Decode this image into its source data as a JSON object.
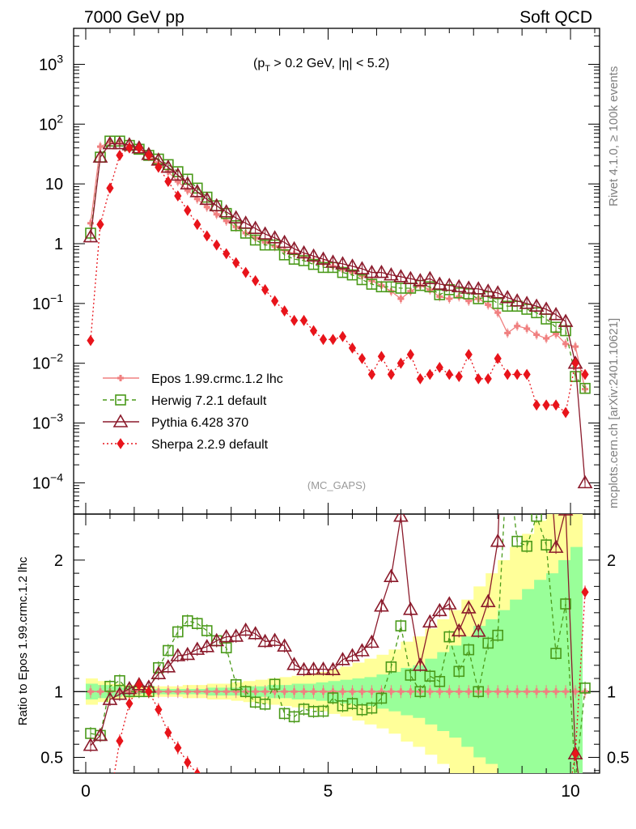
{
  "header": {
    "left": "7000 GeV pp",
    "right": "Soft QCD"
  },
  "annotations": {
    "cut_text": "(pT > 0.2 GeV, |η| < 5.2)",
    "cut_pre": "(p",
    "cut_sub": "T",
    "cut_post": " > 0.2 GeV, |η| < 5.2)",
    "analysis": "(MC_GAPS)",
    "rivet": "Rivet 4.1.0, ≥ 100k events",
    "source": "mcplots.cern.ch [arXiv:2401.10621]",
    "ratio_ylabel": "Ratio to Epos 1.99.crmc.1.2 lhc"
  },
  "chart_data": {
    "type": "line",
    "title": "7000 GeV pp — Soft QCD",
    "xlabel": "",
    "xlim": [
      -0.25,
      10.6
    ],
    "x_ticks": [
      0,
      5,
      10
    ],
    "top_panel": {
      "yscale": "log",
      "ylim": [
        3e-05,
        4000
      ],
      "y_ticks": [
        {
          "value": 1000,
          "mant": "10",
          "exp": "3"
        },
        {
          "value": 100,
          "mant": "10",
          "exp": "2"
        },
        {
          "value": 10,
          "mant": "10",
          "exp": ""
        },
        {
          "value": 1,
          "mant": "1",
          "exp": ""
        },
        {
          "value": 0.1,
          "mant": "10",
          "exp": "−1"
        },
        {
          "value": 0.01,
          "mant": "10",
          "exp": "−2"
        },
        {
          "value": 0.001,
          "mant": "10",
          "exp": "−3"
        },
        {
          "value": 0.0001,
          "mant": "10",
          "exp": "−4"
        }
      ]
    },
    "ratio_panel": {
      "ylim": [
        0.38,
        2.35
      ],
      "y_ticks": [
        0.5,
        1,
        2
      ],
      "y_tick_labels": [
        "0.5",
        "1",
        "2"
      ],
      "reference": 1,
      "band_inner_half": [
        0.06,
        0.05,
        0.04,
        0.03,
        0.02,
        0.02,
        0.02,
        0.02,
        0.02,
        0.02,
        0.03,
        0.03,
        0.03,
        0.04,
        0.04,
        0.05,
        0.05,
        0.06,
        0.06,
        0.07,
        0.08,
        0.09,
        0.1,
        0.11,
        0.13,
        0.15,
        0.18,
        0.2,
        0.25,
        0.3,
        0.35,
        0.42,
        0.5,
        0.55,
        0.62,
        0.7,
        0.78,
        0.85,
        0.9,
        1.0,
        1.1
      ],
      "band_outer_half": [
        0.1,
        0.08,
        0.06,
        0.05,
        0.04,
        0.04,
        0.04,
        0.04,
        0.05,
        0.05,
        0.06,
        0.06,
        0.07,
        0.08,
        0.09,
        0.1,
        0.11,
        0.12,
        0.13,
        0.15,
        0.17,
        0.19,
        0.22,
        0.25,
        0.28,
        0.32,
        0.38,
        0.42,
        0.48,
        0.55,
        0.62,
        0.7,
        0.8,
        0.9,
        1.0,
        1.1,
        1.2,
        1.3,
        1.4,
        1.5,
        1.6
      ]
    },
    "series": [
      {
        "name": "Epos 1.99.crmc.1.2 lhc",
        "color": "#f08080",
        "dash": "",
        "marker": "cross",
        "x": [
          0.1,
          0.3,
          0.5,
          0.7,
          0.9,
          1.1,
          1.3,
          1.5,
          1.7,
          1.9,
          2.1,
          2.3,
          2.5,
          2.7,
          2.9,
          3.1,
          3.3,
          3.5,
          3.7,
          3.9,
          4.1,
          4.3,
          4.5,
          4.7,
          4.9,
          5.1,
          5.3,
          5.5,
          5.7,
          5.9,
          6.1,
          6.3,
          6.5,
          6.7,
          6.9,
          7.1,
          7.3,
          7.5,
          7.7,
          7.9,
          8.1,
          8.3,
          8.5,
          8.7,
          8.9,
          9.1,
          9.3,
          9.5,
          9.7,
          9.9,
          10.1,
          10.3
        ],
        "y": [
          2.2,
          42,
          50,
          48,
          44,
          38,
          30,
          22,
          16,
          11,
          7.8,
          5.6,
          4.1,
          3.1,
          2.4,
          1.9,
          1.5,
          1.25,
          1.05,
          0.9,
          0.78,
          0.68,
          0.6,
          0.53,
          0.47,
          0.42,
          0.37,
          0.33,
          0.29,
          0.24,
          0.2,
          0.16,
          0.12,
          0.16,
          0.2,
          0.17,
          0.13,
          0.12,
          0.13,
          0.11,
          0.12,
          0.095,
          0.07,
          0.032,
          0.042,
          0.038,
          0.03,
          0.026,
          0.031,
          0.021,
          0.019,
          0.0037
        ]
      },
      {
        "name": "Herwig 7.2.1 default",
        "color": "#4a9a1a",
        "dash": "5,4",
        "marker": "square",
        "x": [
          0.1,
          0.3,
          0.5,
          0.7,
          0.9,
          1.1,
          1.3,
          1.5,
          1.7,
          1.9,
          2.1,
          2.3,
          2.5,
          2.7,
          2.9,
          3.1,
          3.3,
          3.5,
          3.7,
          3.9,
          4.1,
          4.3,
          4.5,
          4.7,
          4.9,
          5.1,
          5.3,
          5.5,
          5.7,
          5.9,
          6.1,
          6.3,
          6.5,
          6.7,
          6.9,
          7.1,
          7.3,
          7.5,
          7.7,
          7.9,
          8.1,
          8.3,
          8.5,
          8.7,
          8.9,
          9.1,
          9.3,
          9.5,
          9.7,
          9.9,
          10.1,
          10.3
        ],
        "y": [
          1.5,
          28,
          52,
          52,
          44,
          38,
          30,
          26,
          21,
          16,
          12,
          8.5,
          6,
          4.3,
          3.2,
          2,
          1.5,
          1.15,
          0.95,
          0.95,
          0.65,
          0.55,
          0.52,
          0.45,
          0.4,
          0.4,
          0.33,
          0.3,
          0.25,
          0.21,
          0.19,
          0.19,
          0.18,
          0.18,
          0.2,
          0.19,
          0.14,
          0.17,
          0.15,
          0.145,
          0.12,
          0.13,
          0.1,
          0.09,
          0.09,
          0.08,
          0.07,
          0.055,
          0.04,
          0.035,
          0.006,
          0.0038
        ]
      },
      {
        "name": "Pythia 6.428 370",
        "color": "#8b1a2b",
        "dash": "",
        "marker": "triangle",
        "x": [
          0.1,
          0.3,
          0.5,
          0.7,
          0.9,
          1.1,
          1.3,
          1.5,
          1.7,
          1.9,
          2.1,
          2.3,
          2.5,
          2.7,
          2.9,
          3.1,
          3.3,
          3.5,
          3.7,
          3.9,
          4.1,
          4.3,
          4.5,
          4.7,
          4.9,
          5.1,
          5.3,
          5.5,
          5.7,
          5.9,
          6.1,
          6.3,
          6.5,
          6.7,
          6.9,
          7.1,
          7.3,
          7.5,
          7.7,
          7.9,
          8.1,
          8.3,
          8.5,
          8.7,
          8.9,
          9.1,
          9.3,
          9.5,
          9.7,
          9.9,
          10.1,
          10.3
        ],
        "y": [
          1.3,
          28,
          47,
          47,
          45,
          40,
          31,
          25,
          19,
          14,
          10,
          7.4,
          5.5,
          4.3,
          3.4,
          2.7,
          2.2,
          1.8,
          1.45,
          1.25,
          1.05,
          0.82,
          0.7,
          0.62,
          0.55,
          0.49,
          0.46,
          0.42,
          0.38,
          0.33,
          0.33,
          0.3,
          0.28,
          0.26,
          0.24,
          0.26,
          0.21,
          0.2,
          0.19,
          0.18,
          0.175,
          0.16,
          0.15,
          0.125,
          0.11,
          0.1,
          0.09,
          0.08,
          0.065,
          0.05,
          0.01,
          0.0001
        ]
      },
      {
        "name": "Sherpa 2.2.9 default",
        "color": "#e8141b",
        "dash": "2,3",
        "marker": "diamond",
        "x": [
          0.1,
          0.3,
          0.5,
          0.7,
          0.9,
          1.1,
          1.3,
          1.5,
          1.7,
          1.9,
          2.1,
          2.3,
          2.5,
          2.7,
          2.9,
          3.1,
          3.3,
          3.5,
          3.7,
          3.9,
          4.1,
          4.3,
          4.5,
          4.7,
          4.9,
          5.1,
          5.3,
          5.5,
          5.7,
          5.9,
          6.1,
          6.3,
          6.5,
          6.7,
          6.9,
          7.1,
          7.3,
          7.5,
          7.7,
          7.9,
          8.1,
          8.3,
          8.5,
          8.7,
          8.9,
          9.1,
          9.3,
          9.5,
          9.7,
          9.9,
          10.1,
          10.3
        ],
        "y": [
          0.024,
          2.1,
          8.5,
          30,
          40,
          40,
          30,
          19,
          11,
          6.3,
          3.6,
          2.1,
          1.35,
          0.95,
          0.68,
          0.48,
          0.33,
          0.24,
          0.17,
          0.11,
          0.075,
          0.052,
          0.052,
          0.035,
          0.025,
          0.025,
          0.028,
          0.018,
          0.012,
          0.0065,
          0.013,
          0.0065,
          0.01,
          0.014,
          0.0055,
          0.0065,
          0.0085,
          0.0065,
          0.006,
          0.014,
          0.0055,
          0.0055,
          0.012,
          0.0065,
          0.0065,
          0.0065,
          0.002,
          0.002,
          0.002,
          0.0015,
          0.01,
          0.0065
        ]
      }
    ],
    "legend": {
      "placement": "lower-left",
      "entries": [
        "Epos 1.99.crmc.1.2 lhc",
        "Herwig 7.2.1 default",
        "Pythia 6.428 370",
        "Sherpa 2.2.9 default"
      ]
    }
  }
}
